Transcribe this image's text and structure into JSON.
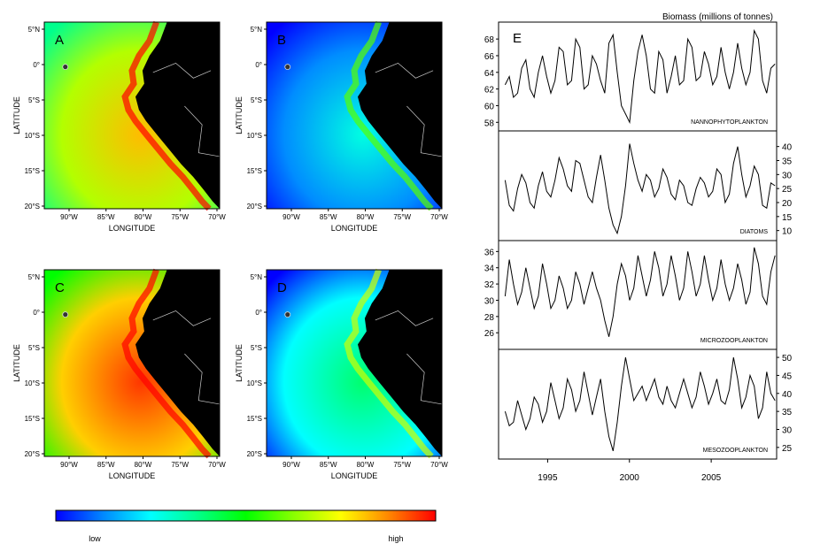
{
  "maps": {
    "xlabel": "LONGITUDE",
    "ylabel": "LATITUDE",
    "lat_ticks": [
      "5°N",
      "0°",
      "5°S",
      "10°S",
      "15°S",
      "20°S"
    ],
    "lon_ticks": [
      "90°W",
      "85°W",
      "80°W",
      "75°W",
      "70°W"
    ],
    "panels": [
      {
        "label": "A",
        "level": 0.72
      },
      {
        "label": "B",
        "level": 0.18
      },
      {
        "label": "C",
        "level": 0.85
      },
      {
        "label": "D",
        "level": 0.3
      }
    ]
  },
  "colorbar": {
    "low": "low",
    "high": "high",
    "colors": [
      "#0000ff",
      "#0088ff",
      "#00ffff",
      "#00ff88",
      "#00ff00",
      "#88ff00",
      "#ffff00",
      "#ff8800",
      "#ff0000"
    ]
  },
  "chart_data": {
    "type": "line",
    "title": "Biomass (millions of tonnes)",
    "panel_label": "E",
    "xlim": [
      1992,
      2009
    ],
    "x_ticks": [
      "1995",
      "2000",
      "2005"
    ],
    "series": [
      {
        "name": "NANNOPHYTOPLANKTON",
        "ylim": [
          57.5,
          69.5
        ],
        "ticks": [
          "58",
          "60",
          "62",
          "64",
          "66",
          "68"
        ],
        "axis": "left",
        "values": [
          62.5,
          63.5,
          61.0,
          61.5,
          64.5,
          65.5,
          62.0,
          61.0,
          64.0,
          66.0,
          63.5,
          61.5,
          63.0,
          67.0,
          66.5,
          62.5,
          63.0,
          68.0,
          67.0,
          62.0,
          62.5,
          66.0,
          65.0,
          63.0,
          61.5,
          67.5,
          68.5,
          64.0,
          60.0,
          59.0,
          58.0,
          63.0,
          66.5,
          68.5,
          66.0,
          62.0,
          61.5,
          66.5,
          65.5,
          61.5,
          63.5,
          66.0,
          62.5,
          63.0,
          68.0,
          67.0,
          63.0,
          63.5,
          66.5,
          65.0,
          62.5,
          63.5,
          67.0,
          64.0,
          62.0,
          64.0,
          67.5,
          64.5,
          62.5,
          64.0,
          69.0,
          68.0,
          63.0,
          61.5,
          64.5,
          65.0
        ]
      },
      {
        "name": "DIATOMS",
        "ylim": [
          8,
          44
        ],
        "ticks": [
          "10",
          "15",
          "20",
          "25",
          "30",
          "35",
          "40"
        ],
        "axis": "right",
        "values": [
          28,
          19,
          17,
          25,
          30,
          27,
          20,
          18,
          26,
          31,
          24,
          22,
          28,
          36,
          32,
          26,
          24,
          35,
          34,
          28,
          22,
          20,
          29,
          37,
          28,
          18,
          12,
          9,
          15,
          26,
          41,
          34,
          28,
          24,
          30,
          28,
          22,
          25,
          32,
          29,
          23,
          21,
          28,
          26,
          20,
          19,
          25,
          29,
          27,
          22,
          24,
          32,
          30,
          20,
          23,
          34,
          40,
          30,
          22,
          26,
          33,
          30,
          19,
          18,
          27,
          26
        ]
      },
      {
        "name": "MICROZOOPLANKTON",
        "ylim": [
          24.5,
          36.8
        ],
        "ticks": [
          "26",
          "28",
          "30",
          "32",
          "34",
          "36"
        ],
        "axis": "left",
        "values": [
          30.5,
          35.0,
          32.0,
          29.5,
          31.0,
          34.0,
          31.5,
          29.0,
          30.5,
          34.5,
          32.0,
          29.0,
          30.0,
          33.0,
          31.5,
          29.0,
          30.0,
          33.5,
          32.0,
          29.5,
          31.5,
          33.5,
          31.5,
          30.0,
          27.5,
          25.5,
          28.0,
          32.0,
          34.5,
          33.0,
          30.0,
          31.5,
          35.5,
          33.0,
          30.5,
          32.5,
          36.0,
          34.0,
          30.5,
          32.0,
          35.5,
          33.0,
          30.0,
          31.5,
          36.0,
          33.5,
          30.5,
          32.0,
          35.5,
          32.5,
          30.0,
          31.5,
          35.0,
          32.0,
          30.0,
          31.5,
          34.5,
          32.5,
          29.5,
          31.0,
          36.5,
          34.5,
          30.5,
          29.5,
          33.5,
          35.5
        ]
      },
      {
        "name": "MESOZOOPLANKTON",
        "ylim": [
          23,
          51
        ],
        "ticks": [
          "25",
          "30",
          "35",
          "40",
          "45",
          "50"
        ],
        "axis": "right",
        "values": [
          35,
          31,
          32,
          38,
          34,
          30,
          33,
          39,
          37,
          32,
          35,
          43,
          38,
          33,
          36,
          44,
          41,
          35,
          38,
          46,
          40,
          34,
          39,
          44,
          35,
          28,
          24,
          32,
          42,
          50,
          44,
          38,
          40,
          42,
          38,
          41,
          44,
          39,
          37,
          42,
          38,
          36,
          40,
          44,
          40,
          36,
          39,
          46,
          42,
          37,
          40,
          44,
          38,
          37,
          41,
          50,
          44,
          36,
          39,
          45,
          42,
          33,
          36,
          46,
          40,
          38
        ]
      }
    ]
  }
}
